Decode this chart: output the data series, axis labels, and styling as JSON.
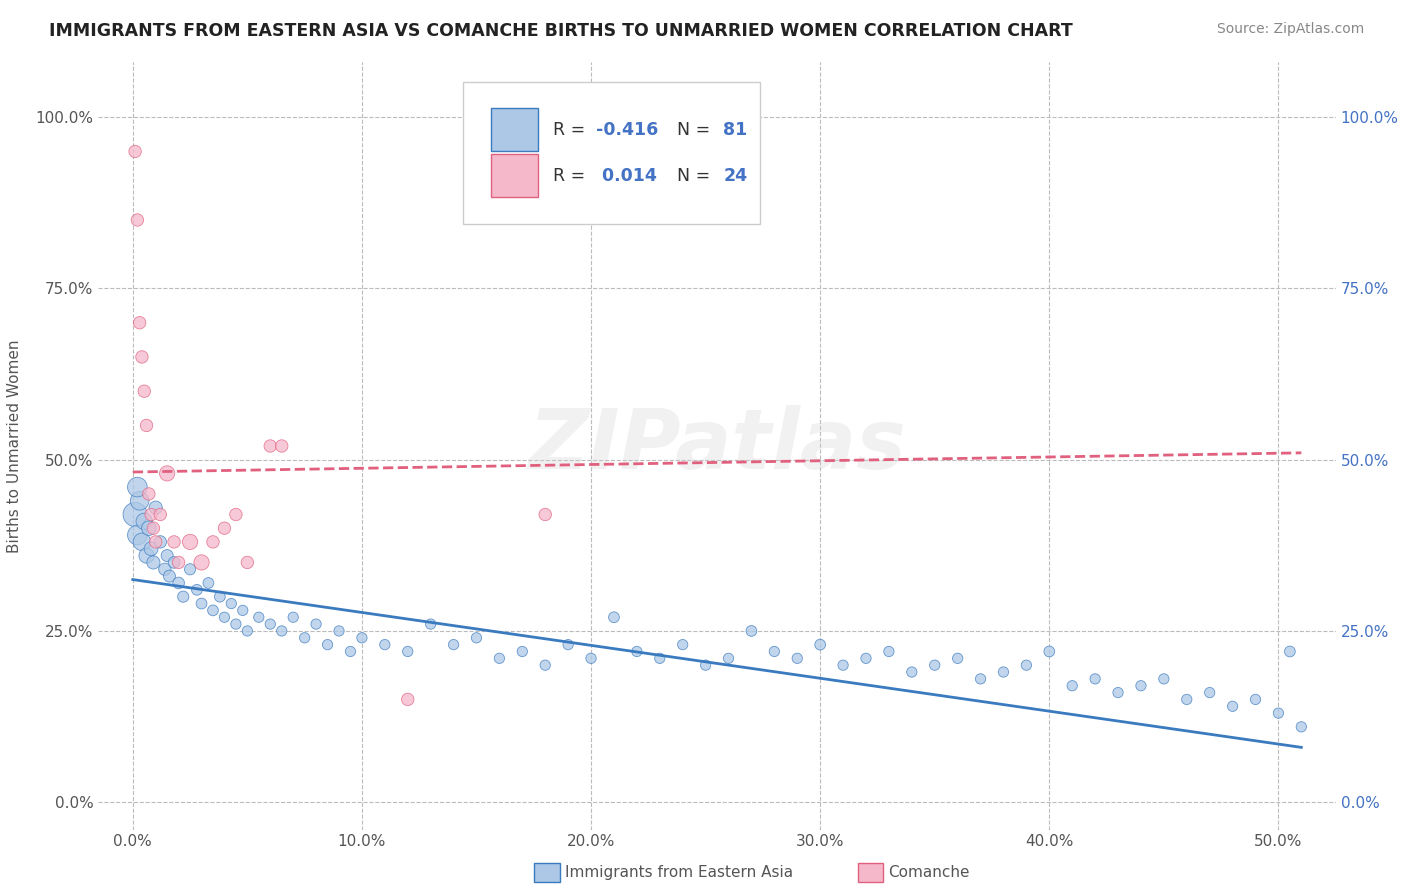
{
  "title": "IMMIGRANTS FROM EASTERN ASIA VS COMANCHE BIRTHS TO UNMARRIED WOMEN CORRELATION CHART",
  "source": "Source: ZipAtlas.com",
  "xlabel_blue": "Immigrants from Eastern Asia",
  "xlabel_pink": "Comanche",
  "ylabel": "Births to Unmarried Women",
  "x_ticks": [
    "0.0%",
    "10.0%",
    "20.0%",
    "30.0%",
    "40.0%",
    "50.0%"
  ],
  "x_tick_vals": [
    0.0,
    0.1,
    0.2,
    0.3,
    0.4,
    0.5
  ],
  "y_ticks": [
    "0.0%",
    "25.0%",
    "50.0%",
    "75.0%",
    "100.0%"
  ],
  "y_tick_vals": [
    0.0,
    0.25,
    0.5,
    0.75,
    1.0
  ],
  "xlim": [
    -0.015,
    0.525
  ],
  "ylim": [
    -0.04,
    1.08
  ],
  "R_blue": -0.416,
  "N_blue": 81,
  "R_pink": 0.014,
  "N_pink": 24,
  "blue_color": "#adc8e6",
  "pink_color": "#f5b8cb",
  "blue_line_color": "#3a7abf",
  "pink_line_color": "#e0607e",
  "watermark": "ZIPatlas",
  "blue_scatter_x": [
    0.001,
    0.002,
    0.003,
    0.004,
    0.005,
    0.006,
    0.007,
    0.008,
    0.009,
    0.01,
    0.012,
    0.014,
    0.015,
    0.016,
    0.018,
    0.02,
    0.022,
    0.025,
    0.028,
    0.03,
    0.033,
    0.035,
    0.038,
    0.04,
    0.043,
    0.045,
    0.048,
    0.05,
    0.055,
    0.06,
    0.065,
    0.07,
    0.075,
    0.08,
    0.085,
    0.09,
    0.095,
    0.1,
    0.11,
    0.12,
    0.13,
    0.14,
    0.15,
    0.16,
    0.17,
    0.18,
    0.19,
    0.2,
    0.21,
    0.22,
    0.23,
    0.24,
    0.25,
    0.26,
    0.27,
    0.28,
    0.29,
    0.3,
    0.31,
    0.32,
    0.33,
    0.34,
    0.35,
    0.36,
    0.37,
    0.38,
    0.39,
    0.4,
    0.41,
    0.42,
    0.43,
    0.44,
    0.45,
    0.46,
    0.47,
    0.48,
    0.49,
    0.5,
    0.505,
    0.51,
    0.002
  ],
  "blue_scatter_y": [
    0.42,
    0.39,
    0.44,
    0.38,
    0.41,
    0.36,
    0.4,
    0.37,
    0.35,
    0.43,
    0.38,
    0.34,
    0.36,
    0.33,
    0.35,
    0.32,
    0.3,
    0.34,
    0.31,
    0.29,
    0.32,
    0.28,
    0.3,
    0.27,
    0.29,
    0.26,
    0.28,
    0.25,
    0.27,
    0.26,
    0.25,
    0.27,
    0.24,
    0.26,
    0.23,
    0.25,
    0.22,
    0.24,
    0.23,
    0.22,
    0.26,
    0.23,
    0.24,
    0.21,
    0.22,
    0.2,
    0.23,
    0.21,
    0.27,
    0.22,
    0.21,
    0.23,
    0.2,
    0.21,
    0.25,
    0.22,
    0.21,
    0.23,
    0.2,
    0.21,
    0.22,
    0.19,
    0.2,
    0.21,
    0.18,
    0.19,
    0.2,
    0.22,
    0.17,
    0.18,
    0.16,
    0.17,
    0.18,
    0.15,
    0.16,
    0.14,
    0.15,
    0.13,
    0.22,
    0.11,
    0.46
  ],
  "blue_scatter_size": [
    300,
    200,
    180,
    160,
    140,
    120,
    110,
    100,
    90,
    90,
    80,
    80,
    75,
    75,
    70,
    70,
    65,
    65,
    60,
    60,
    60,
    60,
    60,
    55,
    55,
    55,
    55,
    55,
    55,
    55,
    55,
    55,
    55,
    55,
    55,
    55,
    55,
    55,
    55,
    55,
    55,
    55,
    55,
    55,
    55,
    55,
    55,
    55,
    60,
    55,
    55,
    55,
    55,
    55,
    60,
    55,
    55,
    60,
    55,
    55,
    55,
    55,
    55,
    55,
    55,
    55,
    55,
    60,
    55,
    55,
    55,
    55,
    55,
    55,
    55,
    55,
    55,
    55,
    60,
    55,
    200
  ],
  "pink_scatter_x": [
    0.001,
    0.002,
    0.003,
    0.004,
    0.005,
    0.006,
    0.007,
    0.008,
    0.009,
    0.01,
    0.012,
    0.015,
    0.018,
    0.02,
    0.025,
    0.03,
    0.035,
    0.04,
    0.045,
    0.05,
    0.06,
    0.065,
    0.12,
    0.18
  ],
  "pink_scatter_y": [
    0.95,
    0.85,
    0.7,
    0.65,
    0.6,
    0.55,
    0.45,
    0.42,
    0.4,
    0.38,
    0.42,
    0.48,
    0.38,
    0.35,
    0.38,
    0.35,
    0.38,
    0.4,
    0.42,
    0.35,
    0.52,
    0.52,
    0.15,
    0.42
  ],
  "pink_scatter_size": [
    80,
    80,
    80,
    80,
    80,
    80,
    80,
    80,
    80,
    80,
    80,
    120,
    80,
    80,
    120,
    120,
    80,
    80,
    80,
    80,
    80,
    80,
    80,
    80
  ],
  "blue_trend_x0": 0.0,
  "blue_trend_y0": 0.325,
  "blue_trend_x1": 0.51,
  "blue_trend_y1": 0.08,
  "pink_trend_x0": 0.0,
  "pink_trend_y0": 0.482,
  "pink_trend_x1": 0.51,
  "pink_trend_y1": 0.51
}
